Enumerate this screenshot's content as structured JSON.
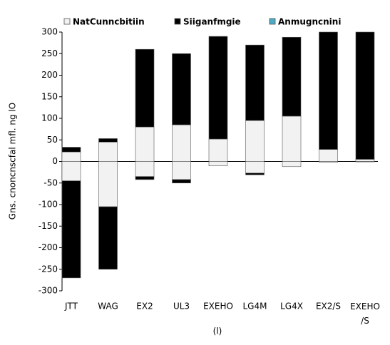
{
  "chart_data": {
    "type": "bar",
    "categories": [
      "JTT",
      "WAG",
      "EX2",
      "UL3",
      "EXEHO",
      "LG4M",
      "LG4X",
      "EX2/S",
      "EXEHO/S"
    ],
    "series": [
      {
        "name": "NatCunncbitiin",
        "color": "#f2f2f2",
        "values": [
          22,
          45,
          80,
          85,
          52,
          95,
          105,
          28,
          5
        ],
        "negative_values": [
          -45,
          -105,
          -35,
          -42,
          -10,
          -27,
          -12,
          -2,
          -1
        ]
      },
      {
        "name": "Siiganfmgie",
        "color": "#000000",
        "values": [
          11,
          8,
          180,
          165,
          238,
          175,
          183,
          272,
          295
        ],
        "negative_values": [
          -225,
          -145,
          -7,
          -8,
          0,
          -4,
          0,
          0,
          0
        ]
      },
      {
        "name": "Anmugncnini",
        "color": "#4bacc6"
      }
    ],
    "y_label": "Gns. cnoncnscfal mfl. ng lO",
    "x_label": "(l)",
    "ylim": [
      -300,
      300
    ],
    "yticks": [
      -300,
      -250,
      -200,
      -150,
      -100,
      -50,
      0,
      50,
      100,
      150,
      200,
      250,
      300
    ],
    "stacked": true
  }
}
